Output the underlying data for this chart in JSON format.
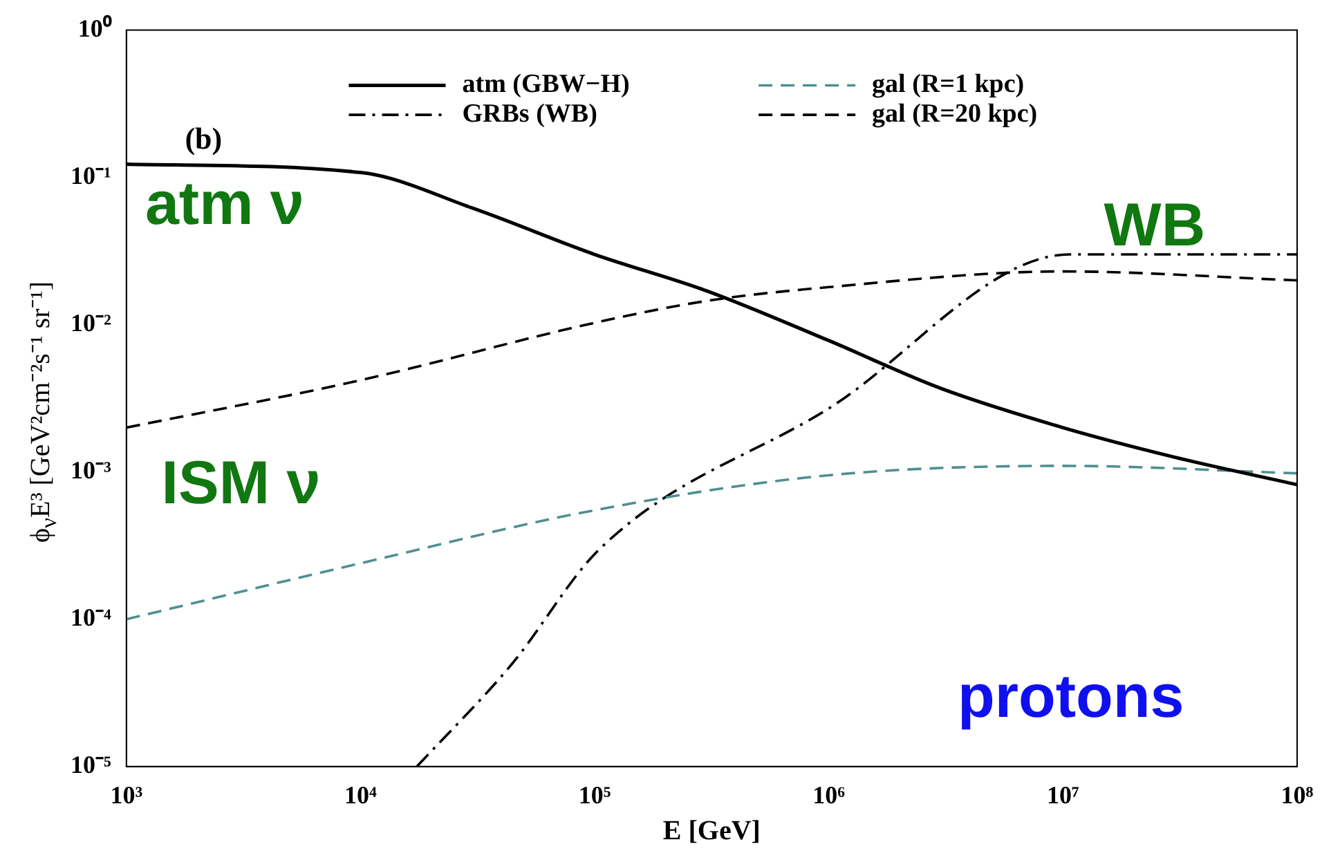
{
  "chart_data": {
    "type": "line",
    "xlabel": "E [GeV]",
    "ylabel": "ϕ$_{ν}$E³ [GeV²cm⁻²s⁻¹ sr⁻¹]",
    "log": "xy",
    "grid": false,
    "legend": "top right",
    "marker": "none",
    "xlim": [
      1000,
      100000000
    ],
    "ylim": [
      1e-05,
      1
    ],
    "xticks": [
      {
        "value": 1000,
        "label": "10³"
      },
      {
        "value": 10000,
        "label": "10⁴"
      },
      {
        "value": 100000,
        "label": "10⁵"
      },
      {
        "value": 1000000,
        "label": "10⁶"
      },
      {
        "value": 10000000,
        "label": "10⁷"
      },
      {
        "value": 100000000,
        "label": "10⁸"
      }
    ],
    "yticks": [
      {
        "value": 1e-05,
        "label": "10⁻⁵"
      },
      {
        "value": 0.0001,
        "label": "10⁻⁴"
      },
      {
        "value": 0.001,
        "label": "10⁻³"
      },
      {
        "value": 0.01,
        "label": "10⁻²"
      },
      {
        "value": 0.1,
        "label": "10⁻¹"
      },
      {
        "value": 1,
        "label": "10⁰"
      }
    ],
    "series": [
      {
        "name": "atm (GBW−H)",
        "color": "#000000",
        "line_style": "solid",
        "x": [
          1000,
          10000,
          30000,
          100000,
          300000,
          1000000,
          3000000,
          10000000,
          30000000,
          100000000
        ],
        "values": [
          0.123,
          0.108,
          0.062,
          0.03,
          0.017,
          0.0078,
          0.0037,
          0.002,
          0.00126,
          0.00082
        ]
      },
      {
        "name": "gal (R=1 kpc)",
        "color": "#4f8f8f",
        "line_style": "dashed",
        "x": [
          1000,
          10000,
          100000,
          1000000,
          10000000,
          100000000
        ],
        "values": [
          0.0001,
          0.00024,
          0.00055,
          0.00095,
          0.0011,
          0.00098
        ]
      },
      {
        "name": "GRBs (WB)",
        "color": "#000000",
        "line_style": "dashdot",
        "x": [
          17400,
          44000,
          105000,
          1000000,
          10700000,
          100000000
        ],
        "values": [
          1e-05,
          4.9e-05,
          0.0003,
          0.0027,
          0.03,
          0.03
        ]
      },
      {
        "name": "gal (R=20 kpc)",
        "color": "#000000",
        "line_style": "dashed",
        "x": [
          1000,
          10000,
          100000,
          300000,
          1000000,
          10000000,
          100000000
        ],
        "values": [
          0.002,
          0.0042,
          0.0103,
          0.0145,
          0.018,
          0.023,
          0.02
        ]
      }
    ],
    "annotations": [
      "(b)",
      "atm ν",
      "ISM ν",
      "WB",
      "protons"
    ]
  }
}
